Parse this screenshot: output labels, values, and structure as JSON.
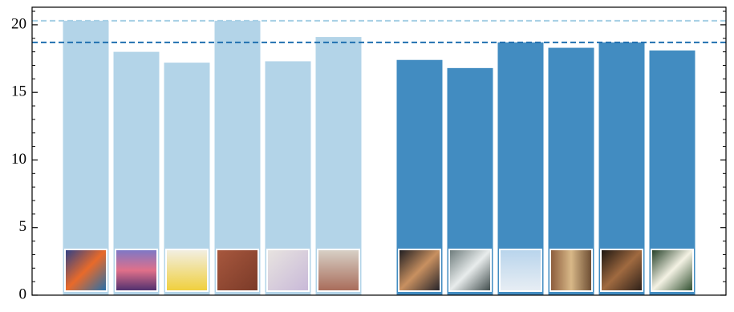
{
  "chart_data": {
    "type": "bar",
    "categories": [
      null,
      null,
      null,
      null,
      null,
      null,
      null,
      null,
      null,
      null,
      null,
      null,
      null
    ],
    "series": [
      {
        "color": "#b3d4e8",
        "values": [
          20.3,
          18.0,
          17.2,
          20.3,
          17.3,
          19.1,
          null,
          null,
          null,
          null,
          null,
          null,
          null
        ]
      },
      {
        "color": "#428cc1",
        "values": [
          null,
          null,
          null,
          null,
          null,
          null,
          null,
          17.4,
          16.8,
          18.7,
          18.3,
          18.7,
          18.1
        ]
      }
    ],
    "hlines": [
      {
        "value": 20.3,
        "color": "#a6cfe5",
        "style": "dashed"
      },
      {
        "value": 18.7,
        "color": "#2070b0",
        "style": "dashed"
      }
    ],
    "ylim": [
      0,
      21.3
    ],
    "yticks": [
      0,
      5,
      10,
      15,
      20
    ],
    "yminorticks": [
      1,
      2,
      3,
      4,
      6,
      7,
      8,
      9,
      11,
      12,
      13,
      14,
      16,
      17,
      18,
      19,
      21
    ],
    "grid": false
  }
}
